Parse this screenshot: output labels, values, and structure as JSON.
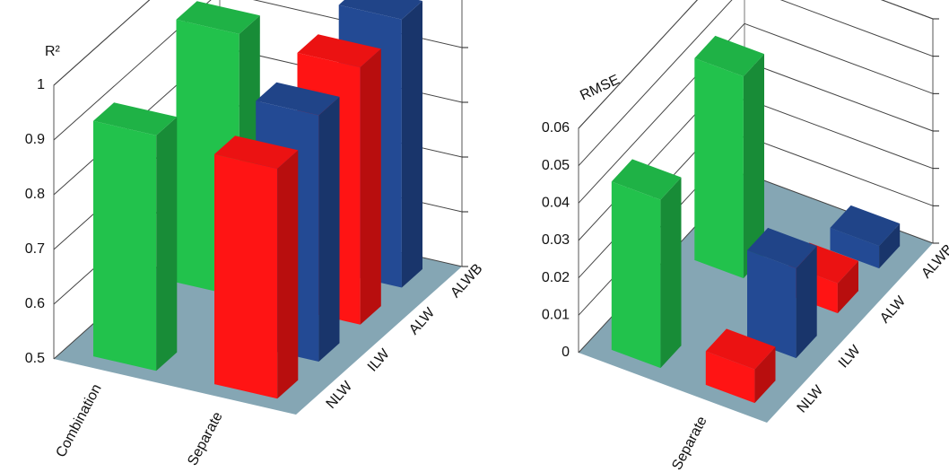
{
  "chart_data": [
    {
      "type": "bar3d",
      "ylabel": "R²",
      "categories": [
        "Combination",
        "Separate"
      ],
      "depth_categories": [
        "NLW",
        "ILW",
        "ALW",
        "ALWB"
      ],
      "values": [
        [
          0.93,
          null,
          0.98,
          null
        ],
        [
          0.92,
          0.95,
          0.97,
          0.99
        ]
      ],
      "colors": [
        [
          "#22c24c",
          "#22c24c",
          "#22c24c",
          "#22c24c"
        ],
        [
          "#ff1414",
          "#234a94",
          "#ff1414",
          "#234a94"
        ]
      ],
      "ylim": [
        0.5,
        1
      ],
      "yticks": [
        0.5,
        0.6,
        0.7,
        0.8,
        0.9,
        1
      ],
      "grid": true
    },
    {
      "type": "bar3d",
      "ylabel": "RMSE",
      "categories": [
        null,
        "Separate"
      ],
      "depth_categories": [
        "NLW",
        "ILW",
        "ALW",
        "ALWB"
      ],
      "values": [
        [
          0.045,
          null,
          0.054,
          null
        ],
        [
          0.009,
          0.024,
          0.008,
          0.006
        ]
      ],
      "colors": [
        [
          "#22c24c",
          "#22c24c",
          "#22c24c",
          "#22c24c"
        ],
        [
          "#ff1414",
          "#234a94",
          "#ff1414",
          "#234a94"
        ]
      ],
      "ylim": [
        0,
        0.06
      ],
      "yticks": [
        0,
        0.01,
        0.02,
        0.03,
        0.04,
        0.05,
        0.06
      ],
      "grid": true
    }
  ]
}
